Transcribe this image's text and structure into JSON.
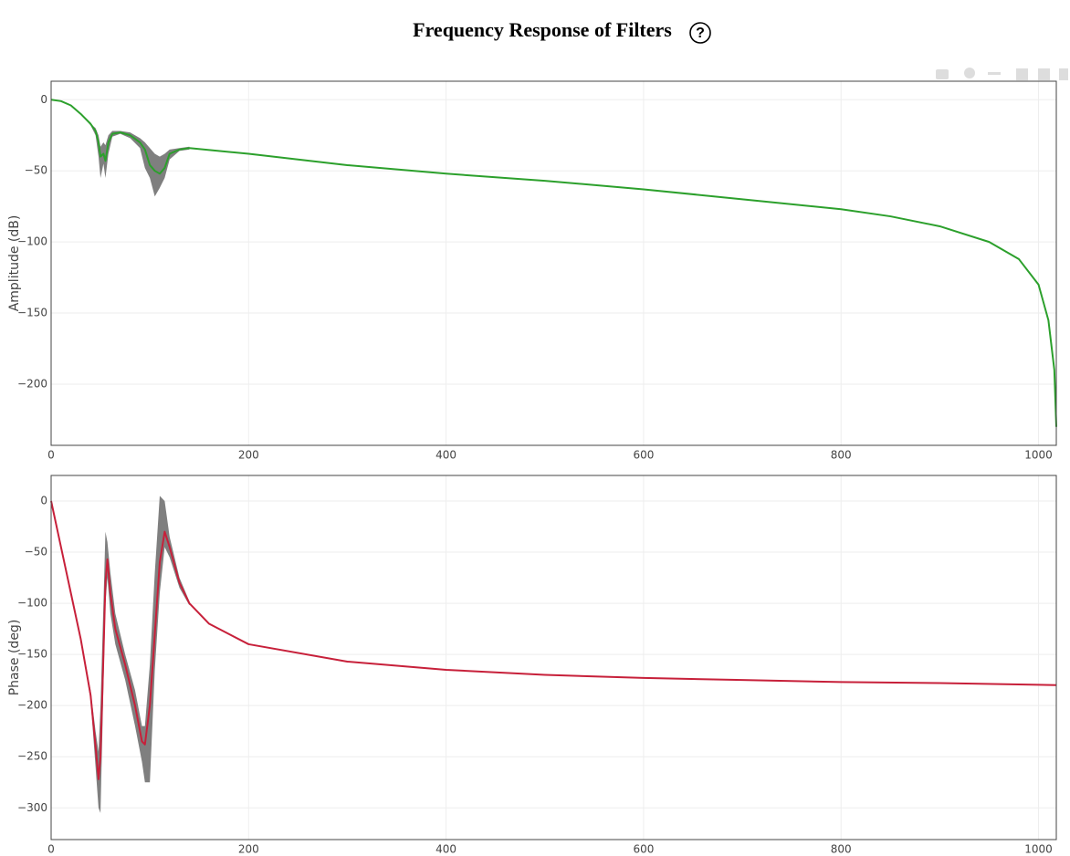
{
  "title": "Frequency Response of Filters",
  "help_icon": "?",
  "chart_data": [
    {
      "type": "line",
      "ylabel": "Amplitude (dB)",
      "grid": true,
      "xlim": [
        0,
        1018
      ],
      "ylim": [
        -243,
        13
      ],
      "xticks": [
        0,
        200,
        400,
        600,
        800,
        1000
      ],
      "yticks": [
        0,
        {
          "value": -50,
          "label": "−50"
        },
        {
          "value": -100,
          "label": "−100"
        },
        {
          "value": -150,
          "label": "−150"
        },
        {
          "value": -200,
          "label": "−200"
        }
      ],
      "x": [
        0,
        10,
        20,
        30,
        40,
        45,
        48,
        50,
        53,
        55,
        58,
        62,
        70,
        80,
        90,
        95,
        100,
        105,
        110,
        115,
        120,
        130,
        140,
        200,
        300,
        400,
        500,
        600,
        700,
        800,
        850,
        900,
        950,
        980,
        1000,
        1010,
        1016,
        1018
      ],
      "series": [
        {
          "color": "#7f7f7f",
          "lower": [
            0,
            -1,
            -4,
            -10,
            -18,
            -25,
            -40,
            -55,
            -45,
            -55,
            -38,
            -26,
            -24,
            -27,
            -34,
            -48,
            -55,
            -68,
            -62,
            -55,
            -42,
            -36,
            -35,
            null,
            null,
            null,
            null,
            null,
            null,
            null,
            null,
            null,
            null,
            null,
            null,
            null,
            null,
            null
          ],
          "upper": [
            0,
            -1,
            -4,
            -10,
            -17,
            -20,
            -25,
            -33,
            -30,
            -32,
            -25,
            -22,
            -22,
            -23,
            -27,
            -30,
            -34,
            -38,
            -40,
            -38,
            -35,
            -34,
            -33,
            null,
            null,
            null,
            null,
            null,
            null,
            null,
            null,
            null,
            null,
            null,
            null,
            null,
            null,
            null
          ]
        },
        {
          "color": "#2ca02c",
          "values": [
            0,
            -1,
            -4,
            -10,
            -17,
            -22,
            -30,
            -40,
            -38,
            -43,
            -30,
            -24,
            -23,
            -25,
            -30,
            -35,
            -46,
            -50,
            -52,
            -48,
            -38,
            -35,
            -34,
            -38,
            -46,
            -52,
            -57,
            -63,
            -70,
            -77,
            -82,
            -89,
            -100,
            -112,
            -130,
            -155,
            -190,
            -230
          ]
        }
      ]
    },
    {
      "type": "line",
      "ylabel": "Phase (deg)",
      "grid": true,
      "xlim": [
        0,
        1018
      ],
      "ylim": [
        -331,
        25
      ],
      "xticks": [
        0,
        200,
        400,
        600,
        800,
        1000
      ],
      "yticks": [
        0,
        {
          "value": -50,
          "label": "−50"
        },
        {
          "value": -100,
          "label": "−100"
        },
        {
          "value": -150,
          "label": "−150"
        },
        {
          "value": -200,
          "label": "−200"
        },
        {
          "value": -250,
          "label": "−250"
        },
        {
          "value": -300,
          "label": "−300"
        }
      ],
      "x": [
        0,
        10,
        20,
        30,
        40,
        45,
        48,
        50,
        53,
        55,
        57,
        60,
        65,
        75,
        85,
        92,
        95,
        100,
        105,
        110,
        115,
        120,
        130,
        140,
        160,
        200,
        300,
        400,
        500,
        600,
        700,
        800,
        900,
        1018
      ],
      "series": [
        {
          "color": "#7f7f7f",
          "lower": [
            0,
            -45,
            -90,
            -135,
            -195,
            -260,
            -300,
            -305,
            -180,
            -100,
            -75,
            -110,
            -140,
            -175,
            -220,
            -255,
            -275,
            -275,
            -165,
            -90,
            -45,
            -55,
            -85,
            -102,
            null,
            null,
            null,
            null,
            null,
            null,
            null,
            null,
            null,
            null
          ],
          "upper": [
            0,
            -45,
            -90,
            -135,
            -185,
            -225,
            -245,
            -200,
            -100,
            -30,
            -40,
            -70,
            -110,
            -150,
            -185,
            -220,
            -220,
            -160,
            -70,
            5,
            0,
            -35,
            -75,
            -98,
            null,
            null,
            null,
            null,
            null,
            null,
            null,
            null,
            null,
            null
          ]
        },
        {
          "color": "#c7203a",
          "values": [
            0,
            -45,
            -90,
            -135,
            -190,
            -240,
            -272,
            -250,
            -150,
            -80,
            -57,
            -90,
            -125,
            -160,
            -200,
            -235,
            -238,
            -200,
            -130,
            -60,
            -30,
            -45,
            -80,
            -100,
            -120,
            -140,
            -157,
            -165,
            -170,
            -173,
            -175,
            -177,
            -178,
            -180
          ]
        }
      ]
    }
  ]
}
